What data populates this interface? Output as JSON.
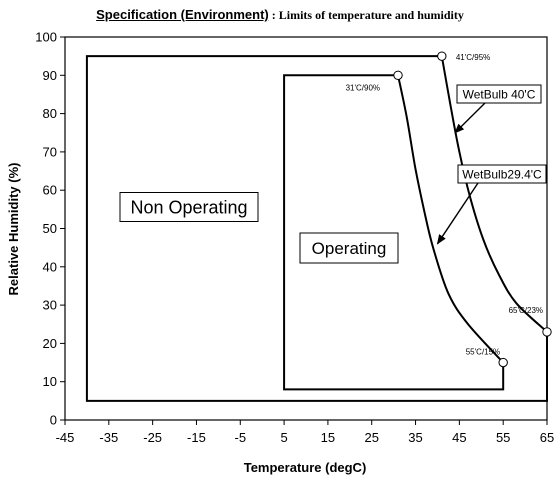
{
  "chart_data": {
    "type": "line",
    "title": "Specification (Environment)",
    "title_separator": ":",
    "subtitle": "Limits of temperature and humidity",
    "xlabel": "Temperature (degC)",
    "ylabel": "Relative Humidity (%)",
    "xlim": [
      -45,
      65
    ],
    "ylim": [
      0,
      100
    ],
    "x_ticks": [
      -45,
      -35,
      -25,
      -15,
      -5,
      5,
      15,
      25,
      35,
      45,
      55,
      65
    ],
    "y_ticks": [
      0,
      10,
      20,
      30,
      40,
      50,
      60,
      70,
      80,
      90,
      100
    ],
    "grid": false,
    "regions": [
      {
        "label": "Non Operating",
        "points": [
          [
            -40,
            5
          ],
          [
            -40,
            95
          ],
          [
            41,
            95
          ],
          [
            65,
            23
          ],
          [
            65,
            5
          ]
        ]
      },
      {
        "label": "Operating",
        "points": [
          [
            5,
            8
          ],
          [
            5,
            90
          ],
          [
            31,
            90
          ],
          [
            55,
            15
          ],
          [
            55,
            8
          ]
        ]
      }
    ],
    "series": [
      {
        "name": "WetBulb 40'C",
        "points": [
          [
            41,
            95
          ],
          [
            43,
            82
          ],
          [
            45,
            70
          ],
          [
            47.5,
            58
          ],
          [
            50.5,
            47
          ],
          [
            54,
            38
          ],
          [
            58,
            30.5
          ],
          [
            65,
            23
          ]
        ]
      },
      {
        "name": "WetBulb29.4'C",
        "points": [
          [
            31,
            90
          ],
          [
            33,
            79
          ],
          [
            35,
            65.5
          ],
          [
            37,
            54.5
          ],
          [
            39,
            45
          ],
          [
            42.5,
            33
          ],
          [
            47,
            25
          ],
          [
            55,
            15
          ]
        ]
      }
    ],
    "point_annotations": [
      {
        "label": "41'C/95%",
        "x": 41,
        "y": 95
      },
      {
        "label": "31'C/90%",
        "x": 31,
        "y": 90
      },
      {
        "label": "65'C/23%",
        "x": 65,
        "y": 23
      },
      {
        "label": "55'C/15%",
        "x": 55,
        "y": 15
      }
    ],
    "callouts": [
      {
        "label": "WetBulb 40'C",
        "target": [
          44,
          75
        ]
      },
      {
        "label": "WetBulb29.4'C",
        "target": [
          40,
          46
        ]
      }
    ],
    "region_labels": [
      {
        "label": "Non Operating"
      },
      {
        "label": "Operating"
      }
    ]
  }
}
